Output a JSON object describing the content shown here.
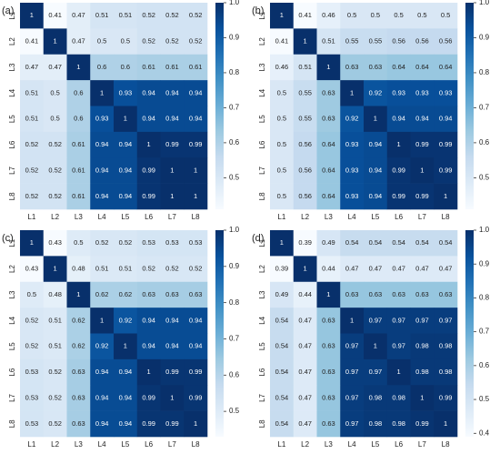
{
  "chart_data": [
    {
      "type": "heatmap",
      "title": "(a)",
      "colormap": "Blues",
      "x_labels": [
        "L1",
        "L2",
        "L3",
        "L4",
        "L5",
        "L6",
        "L7",
        "L8"
      ],
      "y_labels": [
        "L1",
        "L2",
        "L3",
        "L4",
        "L5",
        "L6",
        "L7",
        "L8"
      ],
      "values": [
        [
          1,
          0.41,
          0.47,
          0.51,
          0.51,
          0.52,
          0.52,
          0.52
        ],
        [
          0.41,
          1,
          0.47,
          0.5,
          0.5,
          0.52,
          0.52,
          0.52
        ],
        [
          0.47,
          0.47,
          1,
          0.6,
          0.6,
          0.61,
          0.61,
          0.61
        ],
        [
          0.51,
          0.5,
          0.6,
          1,
          0.93,
          0.94,
          0.94,
          0.94
        ],
        [
          0.51,
          0.5,
          0.6,
          0.93,
          1,
          0.94,
          0.94,
          0.94
        ],
        [
          0.52,
          0.52,
          0.61,
          0.94,
          0.94,
          1,
          0.99,
          0.99
        ],
        [
          0.52,
          0.52,
          0.61,
          0.94,
          0.94,
          0.99,
          1,
          1
        ],
        [
          0.52,
          0.52,
          0.61,
          0.94,
          0.94,
          0.99,
          1,
          1
        ]
      ],
      "zlim": [
        0.41,
        1
      ],
      "zticks": [
        0.5,
        0.6,
        0.7,
        0.8,
        0.9,
        {
          "value": 1,
          "label": "1.0"
        }
      ]
    },
    {
      "type": "heatmap",
      "title": "(b)",
      "colormap": "Blues",
      "x_labels": [
        "L1",
        "L2",
        "L3",
        "L4",
        "L5",
        "L6",
        "L7",
        "L8"
      ],
      "y_labels": [
        "L1",
        "L2",
        "L3",
        "L4",
        "L5",
        "L6",
        "L7",
        "L8"
      ],
      "values": [
        [
          1,
          0.41,
          0.46,
          0.5,
          0.5,
          0.5,
          0.5,
          0.5
        ],
        [
          0.41,
          1,
          0.51,
          0.55,
          0.55,
          0.56,
          0.56,
          0.56
        ],
        [
          0.46,
          0.51,
          1,
          0.63,
          0.63,
          0.64,
          0.64,
          0.64
        ],
        [
          0.5,
          0.55,
          0.63,
          1,
          0.92,
          0.93,
          0.93,
          0.93
        ],
        [
          0.5,
          0.55,
          0.63,
          0.92,
          1,
          0.94,
          0.94,
          0.94
        ],
        [
          0.5,
          0.56,
          0.64,
          0.93,
          0.94,
          1,
          0.99,
          0.99
        ],
        [
          0.5,
          0.56,
          0.64,
          0.93,
          0.94,
          0.99,
          1,
          0.99
        ],
        [
          0.5,
          0.56,
          0.64,
          0.93,
          0.94,
          0.99,
          0.99,
          1
        ]
      ],
      "zlim": [
        0.41,
        1
      ],
      "zticks": [
        0.5,
        0.6,
        0.7,
        0.8,
        0.9,
        {
          "value": 1,
          "label": "1.0"
        }
      ]
    },
    {
      "type": "heatmap",
      "title": "(c)",
      "colormap": "Blues",
      "x_labels": [
        "L1",
        "L2",
        "L3",
        "L4",
        "L5",
        "L6",
        "L7",
        "L8"
      ],
      "y_labels": [
        "L1",
        "L2",
        "L3",
        "L4",
        "L5",
        "L6",
        "L7",
        "L8"
      ],
      "values": [
        [
          1,
          0.43,
          0.5,
          0.52,
          0.52,
          0.53,
          0.53,
          0.53
        ],
        [
          0.43,
          1,
          0.48,
          0.51,
          0.51,
          0.52,
          0.52,
          0.52
        ],
        [
          0.5,
          0.48,
          1,
          0.62,
          0.62,
          0.63,
          0.63,
          0.63
        ],
        [
          0.52,
          0.51,
          0.62,
          1,
          0.92,
          0.94,
          0.94,
          0.94
        ],
        [
          0.52,
          0.51,
          0.62,
          0.92,
          1,
          0.94,
          0.94,
          0.94
        ],
        [
          0.53,
          0.52,
          0.63,
          0.94,
          0.94,
          1,
          0.99,
          0.99
        ],
        [
          0.53,
          0.52,
          0.63,
          0.94,
          0.94,
          0.99,
          1,
          0.99
        ],
        [
          0.53,
          0.52,
          0.63,
          0.94,
          0.94,
          0.99,
          0.99,
          1
        ]
      ],
      "zlim": [
        0.43,
        1
      ],
      "zticks": [
        0.5,
        0.6,
        0.7,
        0.8,
        0.9,
        {
          "value": 1,
          "label": "1.0"
        }
      ]
    },
    {
      "type": "heatmap",
      "title": "(d)",
      "colormap": "Blues",
      "x_labels": [
        "L1",
        "L2",
        "L3",
        "L4",
        "L5",
        "L6",
        "L7",
        "L8"
      ],
      "y_labels": [
        "L1",
        "L2",
        "L3",
        "L4",
        "L5",
        "L6",
        "L7",
        "L8"
      ],
      "values": [
        [
          1,
          0.39,
          0.49,
          0.54,
          0.54,
          0.54,
          0.54,
          0.54
        ],
        [
          0.39,
          1,
          0.44,
          0.47,
          0.47,
          0.47,
          0.47,
          0.47
        ],
        [
          0.49,
          0.44,
          1,
          0.63,
          0.63,
          0.63,
          0.63,
          0.63
        ],
        [
          0.54,
          0.47,
          0.63,
          1,
          0.97,
          0.97,
          0.97,
          0.97
        ],
        [
          0.54,
          0.47,
          0.63,
          0.97,
          1,
          0.97,
          0.98,
          0.98
        ],
        [
          0.54,
          0.47,
          0.63,
          0.97,
          0.97,
          1,
          0.98,
          0.98
        ],
        [
          0.54,
          0.47,
          0.63,
          0.97,
          0.98,
          0.98,
          1,
          0.99
        ],
        [
          0.54,
          0.47,
          0.63,
          0.97,
          0.98,
          0.98,
          0.99,
          1
        ]
      ],
      "zlim": [
        0.39,
        1
      ],
      "zticks": [
        0.4,
        0.5,
        0.6,
        0.7,
        0.8,
        0.9,
        {
          "value": 1,
          "label": "1.0"
        }
      ]
    }
  ]
}
